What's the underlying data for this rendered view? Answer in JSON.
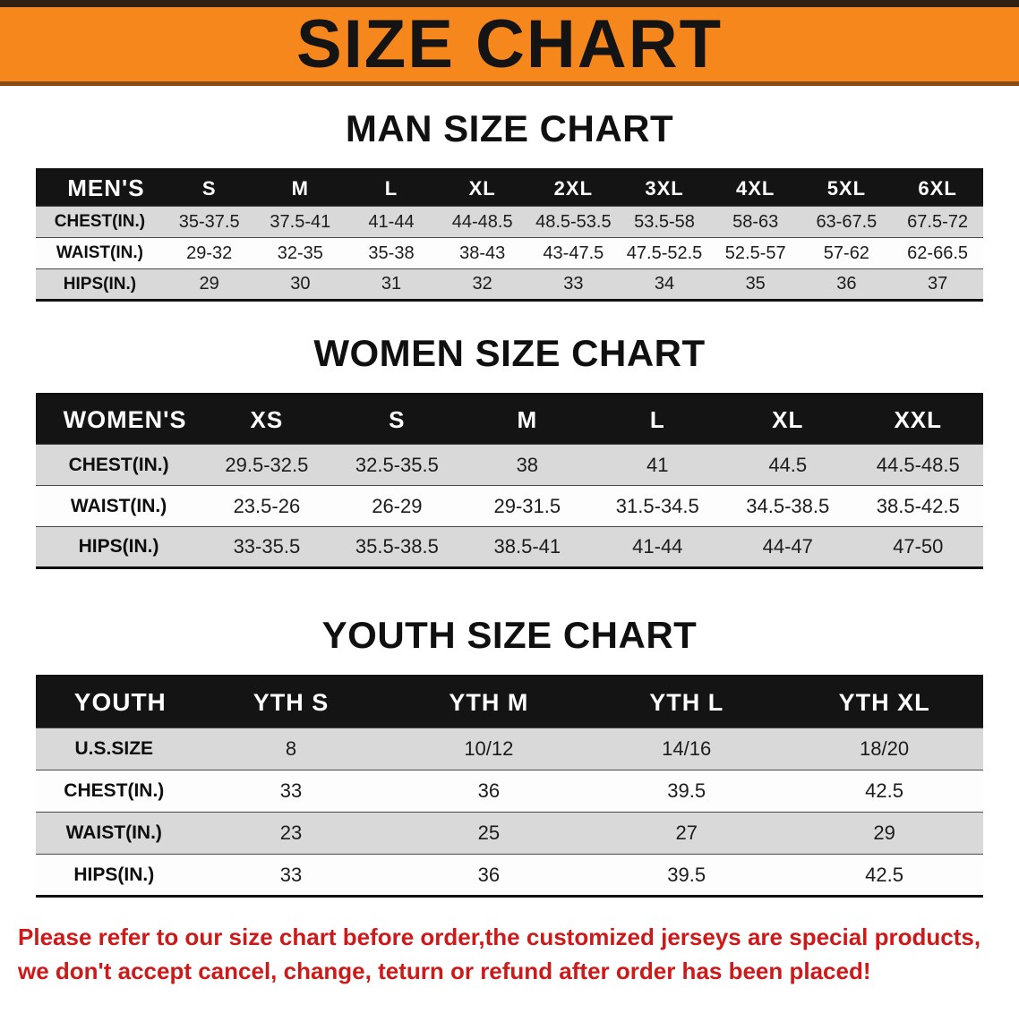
{
  "colors": {
    "banner-bg": "#f6871d",
    "banner-strip": "#2f2013",
    "banner-edge": "#8a4a15",
    "table-header-bg": "#141414",
    "row-shade": "#d9d9d9",
    "disclaimer-red": "#cc1a1a"
  },
  "banner": {
    "title": "SIZE CHART"
  },
  "sections": [
    {
      "heading": "MAN SIZE CHART",
      "table": {
        "corner_label": "MEN'S",
        "columns": [
          "S",
          "M",
          "L",
          "XL",
          "2XL",
          "3XL",
          "4XL",
          "5XL",
          "6XL"
        ],
        "rows": [
          {
            "label": "CHEST(IN.)",
            "values": [
              "35-37.5",
              "37.5-41",
              "41-44",
              "44-48.5",
              "48.5-53.5",
              "53.5-58",
              "58-63",
              "63-67.5",
              "67.5-72"
            ]
          },
          {
            "label": "WAIST(IN.)",
            "values": [
              "29-32",
              "32-35",
              "35-38",
              "38-43",
              "43-47.5",
              "47.5-52.5",
              "52.5-57",
              "57-62",
              "62-66.5"
            ]
          },
          {
            "label": "HIPS(IN.)",
            "values": [
              "29",
              "30",
              "31",
              "32",
              "33",
              "34",
              "35",
              "36",
              "37"
            ]
          }
        ]
      }
    },
    {
      "heading": "WOMEN SIZE CHART",
      "table": {
        "corner_label": "WOMEN'S",
        "columns": [
          "XS",
          "S",
          "M",
          "L",
          "XL",
          "XXL"
        ],
        "rows": [
          {
            "label": "CHEST(IN.)",
            "values": [
              "29.5-32.5",
              "32.5-35.5",
              "38",
              "41",
              "44.5",
              "44.5-48.5"
            ]
          },
          {
            "label": "WAIST(IN.)",
            "values": [
              "23.5-26",
              "26-29",
              "29-31.5",
              "31.5-34.5",
              "34.5-38.5",
              "38.5-42.5"
            ]
          },
          {
            "label": "HIPS(IN.)",
            "values": [
              "33-35.5",
              "35.5-38.5",
              "38.5-41",
              "41-44",
              "44-47",
              "47-50"
            ]
          }
        ]
      }
    },
    {
      "heading": "YOUTH SIZE CHART",
      "table": {
        "corner_label": "YOUTH",
        "columns": [
          "YTH S",
          "YTH M",
          "YTH L",
          "YTH XL"
        ],
        "rows": [
          {
            "label": "U.S.SIZE",
            "values": [
              "8",
              "10/12",
              "14/16",
              "18/20"
            ]
          },
          {
            "label": "CHEST(IN.)",
            "values": [
              "33",
              "36",
              "39.5",
              "42.5"
            ]
          },
          {
            "label": "WAIST(IN.)",
            "values": [
              "23",
              "25",
              "27",
              "29"
            ]
          },
          {
            "label": "HIPS(IN.)",
            "values": [
              "33",
              "36",
              "39.5",
              "42.5"
            ]
          }
        ]
      }
    }
  ],
  "disclaimer": {
    "line1": "Please refer to our size chart before order,the customized jerseys are special products,",
    "line2": "we don't accept cancel, change, teturn or refund after order has been placed!"
  }
}
